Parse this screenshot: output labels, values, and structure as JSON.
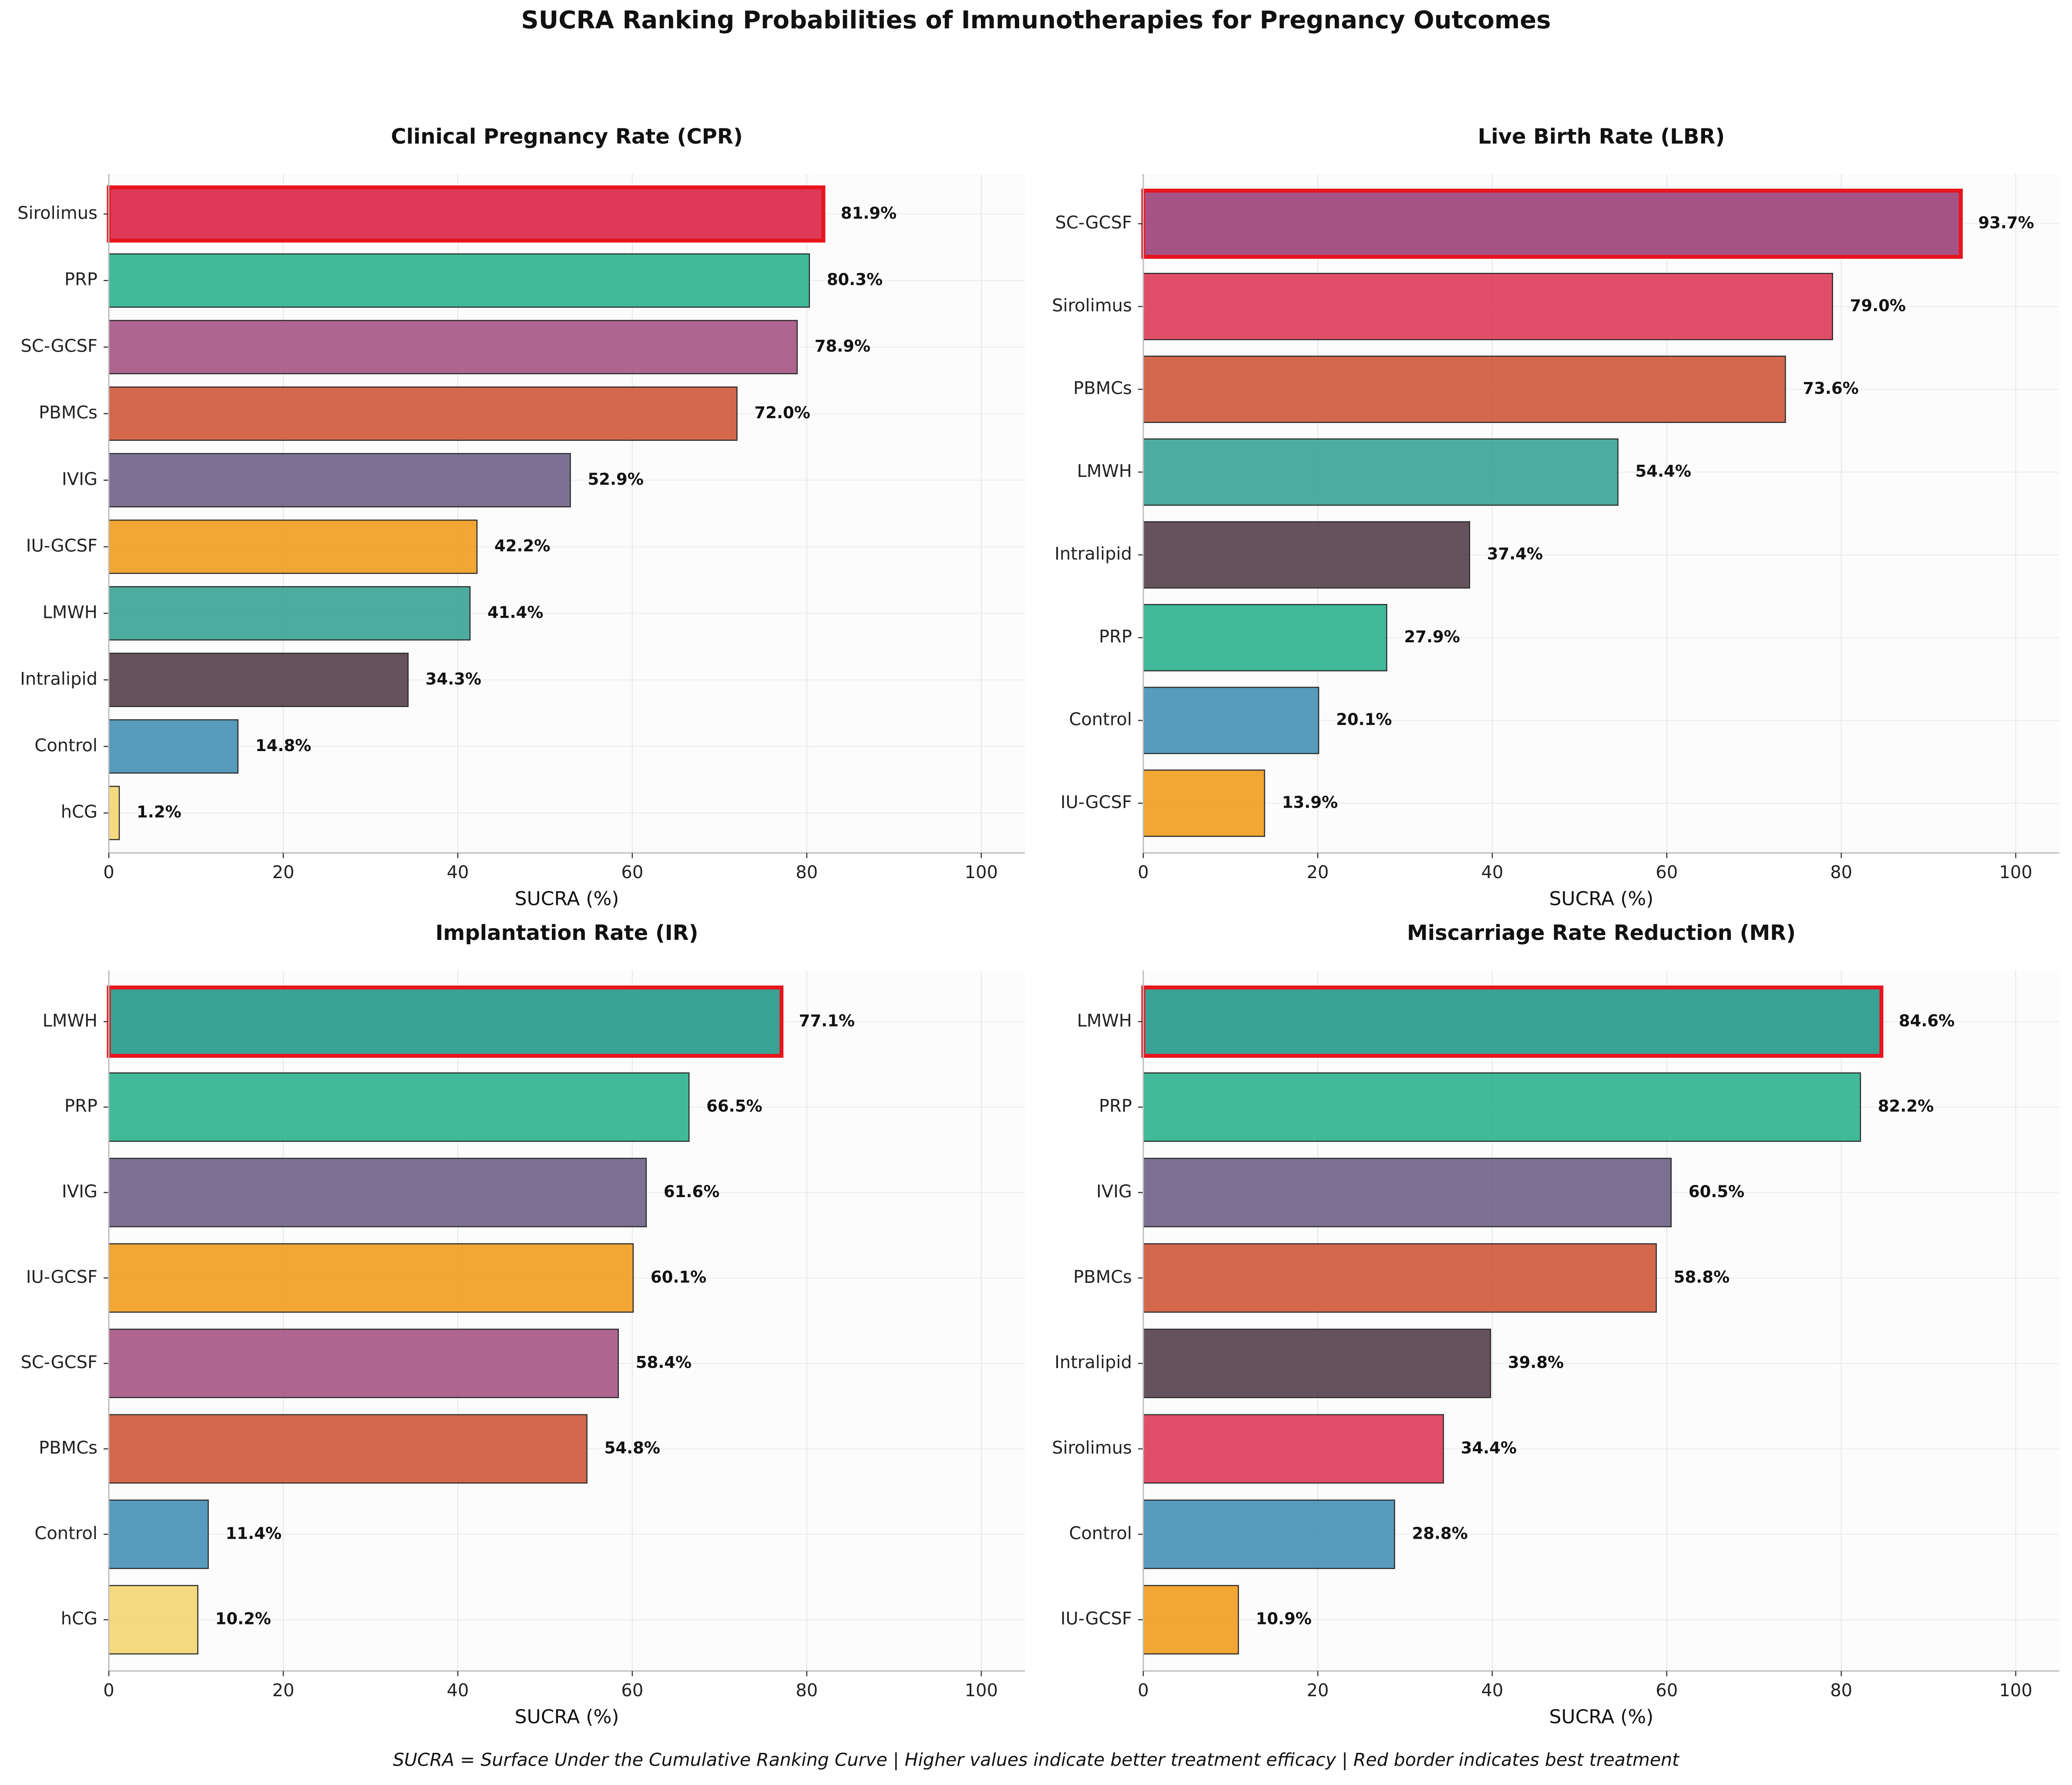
{
  "figure": {
    "title": "SUCRA Ranking Probabilities of Immunotherapies for Pregnancy Outcomes",
    "caption": "SUCRA = Surface Under the Cumulative Ranking Curve | Higher values indicate better treatment efficacy | Red border indicates best treatment"
  },
  "colors": {
    "Sirolimus": "#DC2F4F",
    "PRP": "#1FAE87",
    "SC-GCSF": "#A04A7D",
    "PBMCs": "#CB4E2D",
    "IVIG": "#65587F",
    "IU-GCSF": "#F0960F",
    "LMWH": "#2E9E8F",
    "Intralipid": "#4B3440",
    "Control": "#3B8AB0",
    "hCG": "#F2D26A",
    "best_border": "#E8141E"
  },
  "chart_data": [
    {
      "type": "bar",
      "orientation": "horizontal",
      "title": "Clinical Pregnancy Rate (CPR)",
      "xlabel": "SUCRA (%)",
      "xlim": [
        0,
        105
      ],
      "xticks": [
        0,
        20,
        40,
        60,
        80,
        100
      ],
      "grid": true,
      "categories": [
        "Sirolimus",
        "PRP",
        "SC-GCSF",
        "PBMCs",
        "IVIG",
        "IU-GCSF",
        "LMWH",
        "Intralipid",
        "Control",
        "hCG"
      ],
      "values": [
        81.9,
        80.3,
        78.9,
        72.0,
        52.9,
        42.2,
        41.4,
        34.3,
        14.8,
        1.2
      ],
      "labels": [
        "81.9%",
        "80.3%",
        "78.9%",
        "72.0%",
        "52.9%",
        "42.2%",
        "41.4%",
        "34.3%",
        "14.8%",
        "1.2%"
      ],
      "best": "Sirolimus"
    },
    {
      "type": "bar",
      "orientation": "horizontal",
      "title": "Live Birth Rate (LBR)",
      "xlabel": "SUCRA (%)",
      "xlim": [
        0,
        105
      ],
      "xticks": [
        0,
        20,
        40,
        60,
        80,
        100
      ],
      "grid": true,
      "categories": [
        "SC-GCSF",
        "Sirolimus",
        "PBMCs",
        "LMWH",
        "Intralipid",
        "PRP",
        "Control",
        "IU-GCSF"
      ],
      "values": [
        93.7,
        79.0,
        73.6,
        54.4,
        37.4,
        27.9,
        20.1,
        13.9
      ],
      "labels": [
        "93.7%",
        "79.0%",
        "73.6%",
        "54.4%",
        "37.4%",
        "27.9%",
        "20.1%",
        "13.9%"
      ],
      "best": "SC-GCSF"
    },
    {
      "type": "bar",
      "orientation": "horizontal",
      "title": "Implantation Rate (IR)",
      "xlabel": "SUCRA (%)",
      "xlim": [
        0,
        105
      ],
      "xticks": [
        0,
        20,
        40,
        60,
        80,
        100
      ],
      "grid": true,
      "categories": [
        "LMWH",
        "PRP",
        "IVIG",
        "IU-GCSF",
        "SC-GCSF",
        "PBMCs",
        "Control",
        "hCG"
      ],
      "values": [
        77.1,
        66.5,
        61.6,
        60.1,
        58.4,
        54.8,
        11.4,
        10.2
      ],
      "labels": [
        "77.1%",
        "66.5%",
        "61.6%",
        "60.1%",
        "58.4%",
        "54.8%",
        "11.4%",
        "10.2%"
      ],
      "best": "LMWH"
    },
    {
      "type": "bar",
      "orientation": "horizontal",
      "title": "Miscarriage Rate Reduction (MR)",
      "xlabel": "SUCRA (%)",
      "xlim": [
        0,
        105
      ],
      "xticks": [
        0,
        20,
        40,
        60,
        80,
        100
      ],
      "grid": true,
      "categories": [
        "LMWH",
        "PRP",
        "IVIG",
        "PBMCs",
        "Intralipid",
        "Sirolimus",
        "Control",
        "IU-GCSF"
      ],
      "values": [
        84.6,
        82.2,
        60.5,
        58.8,
        39.8,
        34.4,
        28.8,
        10.9
      ],
      "labels": [
        "84.6%",
        "82.2%",
        "60.5%",
        "58.8%",
        "39.8%",
        "34.4%",
        "28.8%",
        "10.9%"
      ],
      "best": "LMWH"
    }
  ]
}
